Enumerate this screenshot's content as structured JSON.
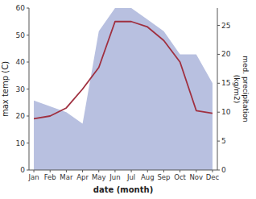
{
  "chart_data": {
    "type": "line",
    "xlabel": "date (month)",
    "ylabel": "max temp (C)",
    "y2label": "med. precipitation\n(kg/m2)",
    "categories": [
      "Jan",
      "Feb",
      "Mar",
      "Apr",
      "May",
      "Jun",
      "Jul",
      "Aug",
      "Sep",
      "Oct",
      "Nov",
      "Dec"
    ],
    "series": [
      {
        "type": "area",
        "color": "#b8c0e0",
        "axis": "y2",
        "values": [
          12,
          11,
          10,
          8,
          24,
          28,
          28,
          26,
          24,
          20,
          20,
          15
        ]
      },
      {
        "type": "line",
        "color": "#a03040",
        "values": [
          19,
          20,
          23,
          30,
          38,
          55,
          55,
          53,
          48,
          40,
          22,
          21
        ]
      }
    ],
    "ylim": [
      0,
      60
    ],
    "yticks": [
      0,
      10,
      20,
      30,
      40,
      50,
      60
    ],
    "y2lim": [
      0,
      28
    ],
    "y2ticks": [
      0,
      5,
      10,
      15,
      20,
      25
    ]
  }
}
